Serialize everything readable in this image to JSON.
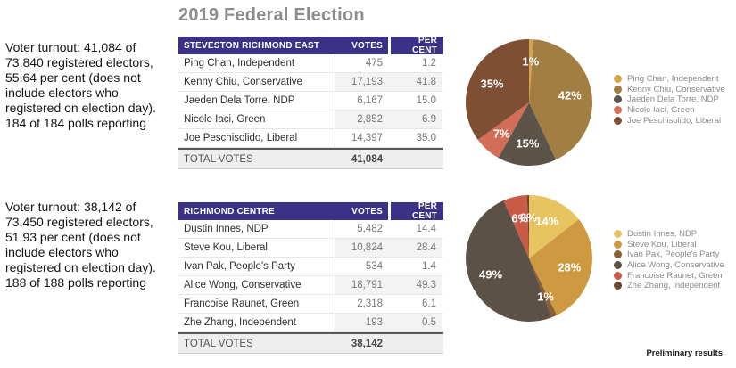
{
  "title": "2019 Federal Election",
  "footer_note": "Preliminary results",
  "notes": [
    "Voter turnout: 41,084 of\n73,840 registered electors,\n55.64 per cent (does not\ninclude electors who\nregistered on election day).\n184 of 184 polls reporting",
    "Voter turnout: 38,142 of\n73,450 registered electors,\n51.93 per cent (does not\ninclude electors who\nregistered on election day).\n188 of 188 polls reporting"
  ],
  "colors": {
    "table_header_bg": "#3b3287",
    "table_header_text": "#ffffff",
    "title_text": "#8d8d8d"
  },
  "tables": [
    {
      "header": {
        "district": "STEVESTON RICHMOND EAST",
        "votes": "VOTES",
        "percent": "PER CENT"
      },
      "rows": [
        {
          "candidate": "Ping Chan, Independent",
          "votes": "475",
          "percent": "1.2"
        },
        {
          "candidate": "Kenny Chiu, Conservative",
          "votes": "17,193",
          "percent": "41.8"
        },
        {
          "candidate": "Jaeden Dela Torre, NDP",
          "votes": "6,167",
          "percent": "15.0"
        },
        {
          "candidate": "Nicole Iaci, Green",
          "votes": "2,852",
          "percent": "6.9"
        },
        {
          "candidate": "Joe Peschisolido, Liberal",
          "votes": "14,397",
          "percent": "35.0"
        }
      ],
      "total_label": "TOTAL VOTES",
      "total_votes": "41,084"
    },
    {
      "header": {
        "district": "RICHMOND CENTRE",
        "votes": "VOTES",
        "percent": "PER CENT"
      },
      "rows": [
        {
          "candidate": "Dustin Innes, NDP",
          "votes": "5,482",
          "percent": "14.4"
        },
        {
          "candidate": "Steve Kou, Liberal",
          "votes": "10,824",
          "percent": "28.4"
        },
        {
          "candidate": "Ivan Pak, People's Party",
          "votes": "534",
          "percent": "1.4"
        },
        {
          "candidate": "Alice Wong, Conservative",
          "votes": "18,791",
          "percent": "49.3"
        },
        {
          "candidate": "Francoise Raunet, Green",
          "votes": "2,318",
          "percent": "6.1"
        },
        {
          "candidate": "Zhe Zhang, Independent",
          "votes": "193",
          "percent": "0.5"
        }
      ],
      "total_label": "TOTAL VOTES",
      "total_votes": "38,142"
    }
  ],
  "chart_data": [
    {
      "type": "pie",
      "title": "Steveston Richmond East",
      "labels": [
        "Ping Chan, Independent",
        "Kenny Chiu, Conservative",
        "Jaeden Dela Torre, NDP",
        "Nicole Iaci, Green",
        "Joe Peschisolido, Liberal"
      ],
      "values": [
        1.2,
        41.8,
        15.0,
        6.9,
        35.0
      ],
      "slice_labels": [
        "1%",
        "42%",
        "15%",
        "7%",
        "35%"
      ],
      "colors": [
        "#d4a548",
        "#a27e43",
        "#5c5349",
        "#d26e58",
        "#7e4f33"
      ],
      "legend_position": "right",
      "start_angle_deg": 0,
      "direction": "clockwise"
    },
    {
      "type": "pie",
      "title": "Richmond Centre",
      "labels": [
        "Dustin Innes, NDP",
        "Steve Kou, Liberal",
        "Ivan Pak, People's Party",
        "Alice Wong, Conservative",
        "Francoise Raunet, Green",
        "Zhe Zhang, Independent"
      ],
      "values": [
        14.4,
        28.4,
        1.4,
        49.3,
        6.1,
        0.5
      ],
      "slice_labels": [
        "14%",
        "28%",
        "1%",
        "49%",
        "6%",
        "0%"
      ],
      "colors": [
        "#e7c45f",
        "#ce9a41",
        "#8a5f33",
        "#5b5147",
        "#c95a47",
        "#6b4630"
      ],
      "legend_position": "right",
      "start_angle_deg": 0,
      "direction": "clockwise"
    }
  ]
}
